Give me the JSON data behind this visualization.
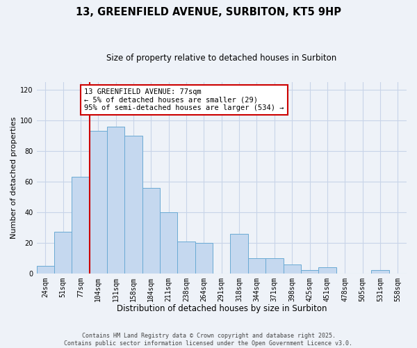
{
  "title": "13, GREENFIELD AVENUE, SURBITON, KT5 9HP",
  "subtitle": "Size of property relative to detached houses in Surbiton",
  "xlabel": "Distribution of detached houses by size in Surbiton",
  "ylabel": "Number of detached properties",
  "bar_labels": [
    "24sqm",
    "51sqm",
    "77sqm",
    "104sqm",
    "131sqm",
    "158sqm",
    "184sqm",
    "211sqm",
    "238sqm",
    "264sqm",
    "291sqm",
    "318sqm",
    "344sqm",
    "371sqm",
    "398sqm",
    "425sqm",
    "451sqm",
    "478sqm",
    "505sqm",
    "531sqm",
    "558sqm"
  ],
  "bar_values": [
    5,
    27,
    63,
    93,
    96,
    90,
    56,
    40,
    21,
    20,
    0,
    26,
    10,
    10,
    6,
    2,
    4,
    0,
    0,
    2,
    0
  ],
  "bar_color": "#c5d8ef",
  "bar_edgecolor": "#6aaad4",
  "vline_x_index": 2,
  "vline_color": "#cc0000",
  "annotation_text": "13 GREENFIELD AVENUE: 77sqm\n← 5% of detached houses are smaller (29)\n95% of semi-detached houses are larger (534) →",
  "annotation_box_edgecolor": "#cc0000",
  "annotation_box_facecolor": "#ffffff",
  "ylim": [
    0,
    125
  ],
  "yticks": [
    0,
    20,
    40,
    60,
    80,
    100,
    120
  ],
  "grid_color": "#c8d4e8",
  "background_color": "#eef2f8",
  "footnote": "Contains HM Land Registry data © Crown copyright and database right 2025.\nContains public sector information licensed under the Open Government Licence v3.0.",
  "title_fontsize": 10.5,
  "subtitle_fontsize": 8.5,
  "xlabel_fontsize": 8.5,
  "ylabel_fontsize": 8,
  "tick_fontsize": 7,
  "annot_fontsize": 7.5,
  "footnote_fontsize": 6
}
